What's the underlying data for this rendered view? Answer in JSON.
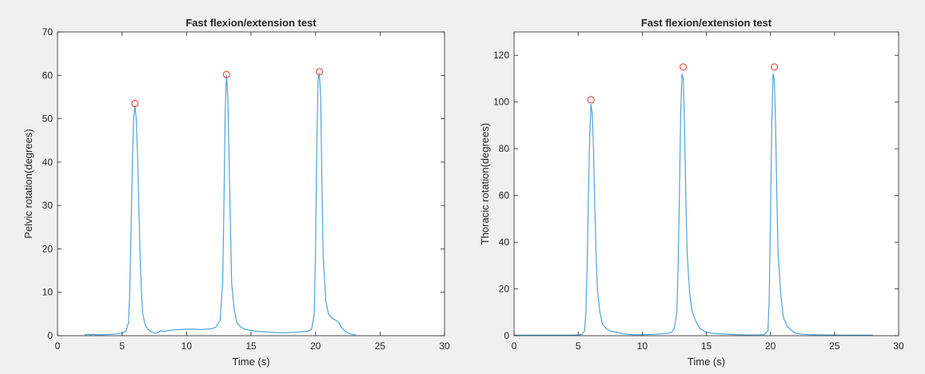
{
  "style": {
    "figure_background": "#f0f0f0",
    "axes_background": "#ffffff",
    "line_color": "#4da3d9",
    "peak_marker_color": "#e8433d",
    "axis_color": "#262626"
  },
  "chart_data": [
    {
      "type": "line",
      "title": "Fast flexion/extension test",
      "xlabel": "Time (s)",
      "ylabel": "Pelvic rotation(degrees)",
      "xlim": [
        0,
        30
      ],
      "ylim": [
        0,
        70
      ],
      "xticks": [
        0,
        5,
        10,
        15,
        20,
        25,
        30
      ],
      "yticks": [
        0,
        10,
        20,
        30,
        40,
        50,
        60,
        70
      ],
      "grid": false,
      "series": [
        {
          "x": [
            2.1,
            2.4,
            2.6,
            2.8,
            3.0,
            3.5,
            4.0,
            4.5,
            5.0,
            5.3,
            5.5,
            5.6,
            5.7,
            5.8,
            5.9,
            6.0,
            6.1,
            6.2,
            6.3,
            6.4,
            6.5,
            6.6,
            6.8,
            7.0,
            7.3,
            7.6,
            7.8,
            8.0,
            8.3,
            8.6,
            9.0,
            9.5,
            10.0,
            10.5,
            11.0,
            11.5,
            12.0,
            12.3,
            12.6,
            12.8,
            12.9,
            13.0,
            13.1,
            13.2,
            13.3,
            13.4,
            13.5,
            13.7,
            13.9,
            14.2,
            14.5,
            15.0,
            15.5,
            16.0,
            16.5,
            17.0,
            17.5,
            18.0,
            18.5,
            19.0,
            19.4,
            19.7,
            19.9,
            20.0,
            20.1,
            20.2,
            20.3,
            20.4,
            20.5,
            20.6,
            20.8,
            21.0,
            21.3,
            21.6,
            21.8,
            22.0,
            22.3,
            22.6,
            22.9,
            23.1
          ],
          "y": [
            0.2,
            0.3,
            0.2,
            0.3,
            0.2,
            0.2,
            0.3,
            0.4,
            0.6,
            1.0,
            3.0,
            10.0,
            25.0,
            40.0,
            50.0,
            53.0,
            50.0,
            42.0,
            30.0,
            18.0,
            10.0,
            5.0,
            2.5,
            1.5,
            0.8,
            0.5,
            0.7,
            1.1,
            1.0,
            1.2,
            1.3,
            1.4,
            1.5,
            1.5,
            1.4,
            1.5,
            1.6,
            2.0,
            3.5,
            12.0,
            30.0,
            52.0,
            60.0,
            55.0,
            40.0,
            25.0,
            12.0,
            6.0,
            3.0,
            2.0,
            1.5,
            1.2,
            1.0,
            0.9,
            0.8,
            0.7,
            0.6,
            0.7,
            0.8,
            0.9,
            1.0,
            1.5,
            5.0,
            20.0,
            45.0,
            59.0,
            60.5,
            55.0,
            35.0,
            18.0,
            8.0,
            5.0,
            4.0,
            3.5,
            3.0,
            2.0,
            1.0,
            0.5,
            0.3,
            0.2
          ]
        }
      ],
      "peaks": [
        {
          "x": 6.0,
          "y": 53.5
        },
        {
          "x": 13.1,
          "y": 60.2
        },
        {
          "x": 20.3,
          "y": 60.8
        }
      ]
    },
    {
      "type": "line",
      "title": "Fast flexion/extension test",
      "xlabel": "Time (s)",
      "ylabel": "Thoracic rotation(degrees)",
      "xlim": [
        0,
        30
      ],
      "ylim": [
        0,
        130
      ],
      "xticks": [
        0,
        5,
        10,
        15,
        20,
        25,
        30
      ],
      "yticks": [
        0,
        20,
        40,
        60,
        80,
        100,
        120
      ],
      "grid": false,
      "series": [
        {
          "x": [
            0.0,
            1.0,
            2.0,
            3.0,
            4.0,
            4.5,
            5.0,
            5.3,
            5.5,
            5.6,
            5.7,
            5.8,
            5.9,
            6.0,
            6.1,
            6.2,
            6.3,
            6.4,
            6.5,
            6.7,
            6.9,
            7.2,
            7.5,
            8.0,
            8.5,
            9.0,
            9.5,
            10.0,
            10.5,
            11.0,
            11.5,
            12.0,
            12.3,
            12.5,
            12.7,
            12.8,
            12.9,
            13.0,
            13.1,
            13.2,
            13.3,
            13.4,
            13.5,
            13.7,
            13.9,
            14.2,
            14.5,
            15.0,
            15.5,
            16.0,
            17.0,
            18.0,
            19.0,
            19.5,
            19.8,
            19.9,
            20.0,
            20.1,
            20.2,
            20.3,
            20.4,
            20.5,
            20.6,
            20.8,
            21.0,
            21.3,
            21.7,
            22.0,
            22.5,
            23.0,
            24.0,
            25.0,
            26.0,
            27.0,
            28.0
          ],
          "y": [
            0.2,
            0.2,
            0.2,
            0.2,
            0.2,
            0.2,
            0.3,
            0.5,
            2.0,
            10.0,
            30.0,
            60.0,
            85.0,
            99.0,
            95.0,
            80.0,
            55.0,
            35.0,
            20.0,
            10.0,
            5.0,
            3.0,
            2.0,
            1.5,
            0.8,
            0.5,
            0.4,
            0.4,
            0.5,
            0.6,
            0.8,
            1.0,
            1.5,
            3.0,
            10.0,
            30.0,
            60.0,
            95.0,
            112.0,
            110.0,
            90.0,
            60.0,
            35.0,
            18.0,
            10.0,
            6.0,
            3.0,
            1.5,
            1.0,
            0.8,
            0.5,
            0.3,
            0.3,
            0.4,
            2.0,
            15.0,
            50.0,
            90.0,
            112.0,
            110.0,
            90.0,
            60.0,
            35.0,
            18.0,
            8.0,
            4.0,
            2.0,
            1.0,
            0.6,
            0.4,
            0.3,
            0.2,
            0.2,
            0.2,
            0.2
          ]
        }
      ],
      "peaks": [
        {
          "x": 6.0,
          "y": 101.0
        },
        {
          "x": 13.2,
          "y": 115.0
        },
        {
          "x": 20.3,
          "y": 115.0
        }
      ]
    }
  ]
}
